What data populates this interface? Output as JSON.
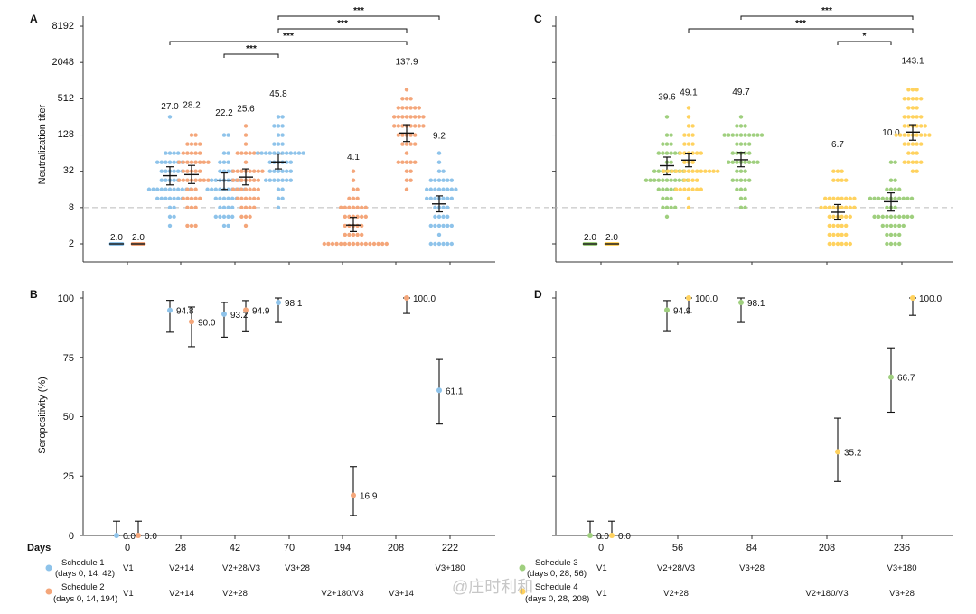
{
  "colors": {
    "blue": "#8ec3ea",
    "orange": "#f4a67a",
    "green": "#9fcf7e",
    "yellow": "#ffd25e",
    "axis": "#333333",
    "dash": "#bbbbbb"
  },
  "watermark": "@庄时利和",
  "days_label": "Days",
  "chart_data": [
    {
      "id": "A",
      "type": "scatter",
      "panel_label": "A",
      "ylabel": "Neutralization titer",
      "yscale": "log2",
      "ylim": [
        1.2,
        8192
      ],
      "yticks": [
        "8192",
        "2048",
        "512",
        "128",
        "32",
        "8",
        "2"
      ],
      "threshold": 8,
      "groups": [
        {
          "day": 0,
          "series": "Schedule 1",
          "gmt": 2.0,
          "label": "2.0",
          "ci": [
            2.0,
            2.0
          ]
        },
        {
          "day": 0,
          "series": "Schedule 2",
          "gmt": 2.0,
          "label": "2.0",
          "ci": [
            2.0,
            2.0
          ]
        },
        {
          "day": 28,
          "series": "Schedule 1",
          "gmt": 27.0,
          "label": "27.0",
          "ci": [
            19,
            38
          ]
        },
        {
          "day": 28,
          "series": "Schedule 2",
          "gmt": 28.2,
          "label": "28.2",
          "ci": [
            20,
            40
          ]
        },
        {
          "day": 42,
          "series": "Schedule 1",
          "gmt": 22.2,
          "label": "22.2",
          "ci": [
            16,
            30
          ]
        },
        {
          "day": 42,
          "series": "Schedule 2",
          "gmt": 25.6,
          "label": "25.6",
          "ci": [
            19,
            35
          ]
        },
        {
          "day": 70,
          "series": "Schedule 1",
          "gmt": 45.8,
          "label": "45.8",
          "ci": [
            35,
            62
          ]
        },
        {
          "day": 194,
          "series": "Schedule 2",
          "gmt": 4.1,
          "label": "4.1",
          "ci": [
            3.2,
            5.5
          ]
        },
        {
          "day": 208,
          "series": "Schedule 2",
          "gmt": 137.9,
          "label": "137.9",
          "ci": [
            100,
            190
          ]
        },
        {
          "day": 222,
          "series": "Schedule 1",
          "gmt": 9.2,
          "label": "9.2",
          "ci": [
            6.8,
            12.5
          ]
        }
      ],
      "significance": [
        {
          "label": "***",
          "from": "70-S1",
          "to": "42-S1"
        },
        {
          "label": "***",
          "from": "28-S1",
          "to": "208-S2"
        },
        {
          "label": "***",
          "from": "70-S1",
          "to": "208-S2"
        },
        {
          "label": "***",
          "from": "70-S1",
          "to": "222-S1"
        }
      ]
    },
    {
      "id": "C",
      "type": "scatter",
      "panel_label": "C",
      "yscale": "log2",
      "ylim": [
        1.2,
        8192
      ],
      "threshold": 8,
      "groups": [
        {
          "day": 0,
          "series": "Schedule 3",
          "gmt": 2.0,
          "label": "2.0",
          "ci": [
            2.0,
            2.0
          ]
        },
        {
          "day": 0,
          "series": "Schedule 4",
          "gmt": 2.0,
          "label": "2.0",
          "ci": [
            2.0,
            2.0
          ]
        },
        {
          "day": 56,
          "series": "Schedule 3",
          "gmt": 39.6,
          "label": "39.6",
          "ci": [
            28,
            55
          ]
        },
        {
          "day": 56,
          "series": "Schedule 4",
          "gmt": 49.1,
          "label": "49.1",
          "ci": [
            38,
            64
          ]
        },
        {
          "day": 84,
          "series": "Schedule 3",
          "gmt": 49.7,
          "label": "49.7",
          "ci": [
            38,
            66
          ]
        },
        {
          "day": 208,
          "series": "Schedule 4",
          "gmt": 6.7,
          "label": "6.7",
          "ci": [
            5.0,
            9.0
          ]
        },
        {
          "day": 236,
          "series": "Schedule 3",
          "gmt": 10.0,
          "label": "10.0",
          "ci": [
            7.0,
            14.0
          ]
        },
        {
          "day": 236,
          "series": "Schedule 4",
          "gmt": 143.1,
          "label": "143.1",
          "ci": [
            105,
            190
          ]
        }
      ],
      "significance": [
        {
          "label": "***",
          "from": "84-S3",
          "to": "236-S4"
        },
        {
          "label": "***",
          "from": "56-S4",
          "to": "236-S4"
        },
        {
          "label": "*",
          "from": "208-S4",
          "to": "236-S3"
        }
      ]
    },
    {
      "id": "B",
      "type": "scatter",
      "panel_label": "B",
      "ylabel": "Seropositivity (%)",
      "ylim": [
        0,
        100
      ],
      "yticks": [
        "100",
        "75",
        "50",
        "25",
        "0"
      ],
      "points": [
        {
          "day": 0,
          "series": "Schedule 1",
          "value": 0.0,
          "label": "0.0",
          "ci": [
            0,
            6
          ]
        },
        {
          "day": 0,
          "series": "Schedule 2",
          "value": 0.0,
          "label": "0.0",
          "ci": [
            0,
            6
          ]
        },
        {
          "day": 28,
          "series": "Schedule 1",
          "value": 94.8,
          "label": "94.8",
          "ci": [
            85.6,
            99.0
          ]
        },
        {
          "day": 28,
          "series": "Schedule 2",
          "value": 90.0,
          "label": "90.0",
          "ci": [
            79.5,
            96.2
          ]
        },
        {
          "day": 42,
          "series": "Schedule 1",
          "value": 93.2,
          "label": "93.2",
          "ci": [
            83.5,
            98.1
          ]
        },
        {
          "day": 42,
          "series": "Schedule 2",
          "value": 94.9,
          "label": "94.9",
          "ci": [
            85.8,
            98.9
          ]
        },
        {
          "day": 70,
          "series": "Schedule 1",
          "value": 98.1,
          "label": "98.1",
          "ci": [
            89.7,
            100
          ]
        },
        {
          "day": 194,
          "series": "Schedule 2",
          "value": 16.9,
          "label": "16.9",
          "ci": [
            8.4,
            29.0
          ]
        },
        {
          "day": 208,
          "series": "Schedule 2",
          "value": 100.0,
          "label": "100.0",
          "ci": [
            93.5,
            100
          ]
        },
        {
          "day": 222,
          "series": "Schedule 1",
          "value": 61.1,
          "label": "61.1",
          "ci": [
            46.9,
            74.1
          ]
        }
      ]
    },
    {
      "id": "D",
      "type": "scatter",
      "panel_label": "D",
      "ylim": [
        0,
        100
      ],
      "points": [
        {
          "day": 0,
          "series": "Schedule 3",
          "value": 0.0,
          "label": "0.0",
          "ci": [
            0,
            6
          ]
        },
        {
          "day": 0,
          "series": "Schedule 4",
          "value": 0.0,
          "label": "0.0",
          "ci": [
            0,
            6
          ]
        },
        {
          "day": 56,
          "series": "Schedule 3",
          "value": 94.9,
          "label": "94.9",
          "ci": [
            85.9,
            98.9
          ]
        },
        {
          "day": 56,
          "series": "Schedule 4",
          "value": 100.0,
          "label": "100.0",
          "ci": [
            94.0,
            100
          ]
        },
        {
          "day": 84,
          "series": "Schedule 3",
          "value": 98.1,
          "label": "98.1",
          "ci": [
            89.7,
            100
          ]
        },
        {
          "day": 208,
          "series": "Schedule 4",
          "value": 35.2,
          "label": "35.2",
          "ci": [
            22.7,
            49.4
          ]
        },
        {
          "day": 236,
          "series": "Schedule 3",
          "value": 66.7,
          "label": "66.7",
          "ci": [
            51.9,
            79.0
          ]
        },
        {
          "day": 236,
          "series": "Schedule 4",
          "value": 100.0,
          "label": "100.0",
          "ci": [
            92.7,
            100
          ]
        }
      ]
    }
  ],
  "left_table": {
    "days": [
      "0",
      "28",
      "42",
      "70",
      "194",
      "208",
      "222"
    ],
    "rows": [
      {
        "name": "Schedule 1",
        "detail": "(days 0, 14, 42)",
        "color": "#8ec3ea",
        "visits": [
          "V1",
          "V2+14",
          "V2+28/V3",
          "V3+28",
          "",
          "",
          "V3+180"
        ]
      },
      {
        "name": "Schedule 2",
        "detail": "(days 0, 14, 194)",
        "color": "#f4a67a",
        "visits": [
          "V1",
          "V2+14",
          "V2+28",
          "",
          "V2+180/V3",
          "V3+14",
          ""
        ]
      }
    ]
  },
  "right_table": {
    "days": [
      "0",
      "56",
      "84",
      "208",
      "236"
    ],
    "rows": [
      {
        "name": "Schedule 3",
        "detail": "(days 0, 28, 56)",
        "color": "#9fcf7e",
        "visits": [
          "V1",
          "V2+28/V3",
          "V3+28",
          "",
          "V3+180"
        ]
      },
      {
        "name": "Schedule 4",
        "detail": "(days 0, 28, 208)",
        "color": "#ffd25e",
        "visits": [
          "V1",
          "V2+28",
          "",
          "V2+180/V3",
          "V3+28"
        ]
      }
    ]
  }
}
